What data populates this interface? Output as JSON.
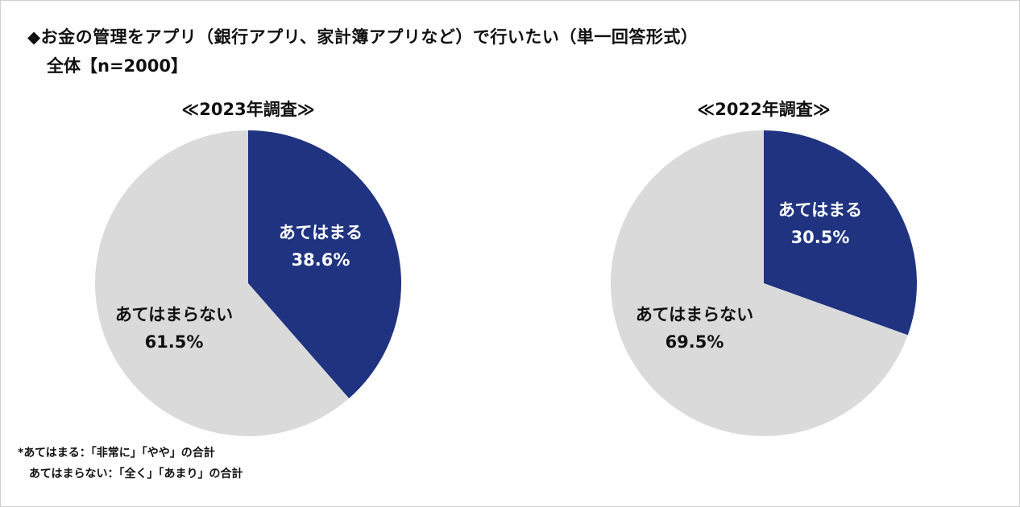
{
  "header": {
    "title": "◆お金の管理をアプリ（銀行アプリ、家計簿アプリなど）で行いたい（単一回答形式）",
    "subtitle": "全体【n=2000】"
  },
  "colors": {
    "positive": "#1f3380",
    "negative": "#dadada",
    "positive_text": "#ffffff",
    "negative_text": "#111111"
  },
  "chart_data": [
    {
      "type": "pie",
      "title": "≪2023年調査≫",
      "slices": [
        {
          "label": "あてはまる",
          "value": 38.6,
          "value_label": "38.6%"
        },
        {
          "label": "あてはまらない",
          "value": 61.5,
          "value_label": "61.5%"
        }
      ]
    },
    {
      "type": "pie",
      "title": "≪2022年調査≫",
      "slices": [
        {
          "label": "あてはまる",
          "value": 30.5,
          "value_label": "30.5%"
        },
        {
          "label": "あてはまらない",
          "value": 69.5,
          "value_label": "69.5%"
        }
      ]
    }
  ],
  "footnotes": {
    "line1": "*あてはまる：「非常に」「やや」の合計",
    "line2": "あてはまらない：「全く」「あまり」の合計"
  }
}
